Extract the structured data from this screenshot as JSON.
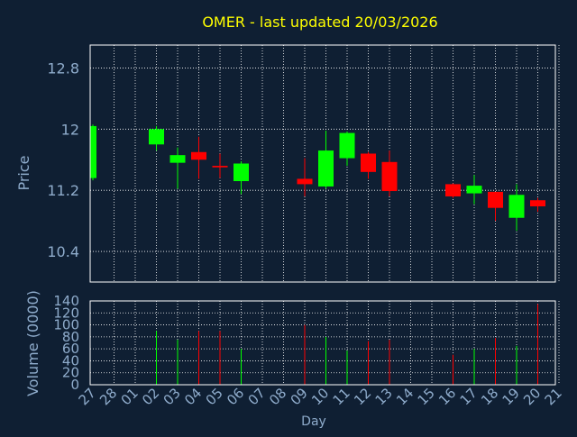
{
  "chart_data": {
    "type": "candlestick",
    "title": "OMER - last updated 20/03/2026",
    "xlabel": "Day",
    "ylabel": "Price",
    "volume_label": "Volume (0000)",
    "ylim": [
      10.0,
      13.1
    ],
    "volume_ylim": [
      0,
      140
    ],
    "price_ticks": [
      10.4,
      11.2,
      12,
      12.8
    ],
    "volume_ticks": [
      0,
      20,
      40,
      60,
      80,
      100,
      120,
      140
    ],
    "days": [
      "27",
      "28",
      "01",
      "02",
      "03",
      "04",
      "05",
      "06",
      "07",
      "08",
      "09",
      "10",
      "11",
      "12",
      "13",
      "14",
      "15",
      "16",
      "17",
      "18",
      "19",
      "20",
      "21"
    ],
    "grid": true,
    "colors": {
      "background": "#0f1f33",
      "grid": "#ffffff",
      "up": "#00ff00",
      "down": "#ff0000",
      "title": "#ffff00",
      "label": "#8faccc"
    },
    "candles": [
      {
        "day": "27",
        "open": 11.36,
        "close": 12.04,
        "high": 12.06,
        "low": 11.33,
        "volume": 0
      },
      {
        "day": "02",
        "open": 11.8,
        "close": 12.0,
        "high": 12.04,
        "low": 11.72,
        "volume": 90
      },
      {
        "day": "03",
        "open": 11.56,
        "close": 11.66,
        "high": 11.76,
        "low": 11.22,
        "volume": 75
      },
      {
        "day": "04",
        "open": 11.7,
        "close": 11.6,
        "high": 11.9,
        "low": 11.35,
        "volume": 90
      },
      {
        "day": "05",
        "open": 11.52,
        "close": 11.5,
        "high": 11.68,
        "low": 11.36,
        "volume": 90
      },
      {
        "day": "06",
        "open": 11.32,
        "close": 11.55,
        "high": 11.58,
        "low": 11.15,
        "volume": 60
      },
      {
        "day": "09",
        "open": 11.35,
        "close": 11.28,
        "high": 11.62,
        "low": 11.12,
        "volume": 100
      },
      {
        "day": "10",
        "open": 11.25,
        "close": 11.72,
        "high": 11.98,
        "low": 11.22,
        "volume": 80
      },
      {
        "day": "11",
        "open": 11.62,
        "close": 11.95,
        "high": 11.97,
        "low": 11.52,
        "volume": 57
      },
      {
        "day": "12",
        "open": 11.68,
        "close": 11.44,
        "high": 11.7,
        "low": 11.35,
        "volume": 73
      },
      {
        "day": "13",
        "open": 11.57,
        "close": 11.19,
        "high": 11.72,
        "low": 11.12,
        "volume": 75
      },
      {
        "day": "16",
        "open": 11.28,
        "close": 11.12,
        "high": 11.29,
        "low": 11.1,
        "volume": 50
      },
      {
        "day": "17",
        "open": 11.16,
        "close": 11.26,
        "high": 11.4,
        "low": 11.02,
        "volume": 60
      },
      {
        "day": "18",
        "open": 11.18,
        "close": 10.97,
        "high": 11.18,
        "low": 10.8,
        "volume": 78
      },
      {
        "day": "19",
        "open": 10.84,
        "close": 11.14,
        "high": 11.28,
        "low": 10.67,
        "volume": 65
      },
      {
        "day": "20",
        "open": 11.07,
        "close": 10.99,
        "high": 11.1,
        "low": 10.92,
        "volume": 135
      }
    ]
  }
}
